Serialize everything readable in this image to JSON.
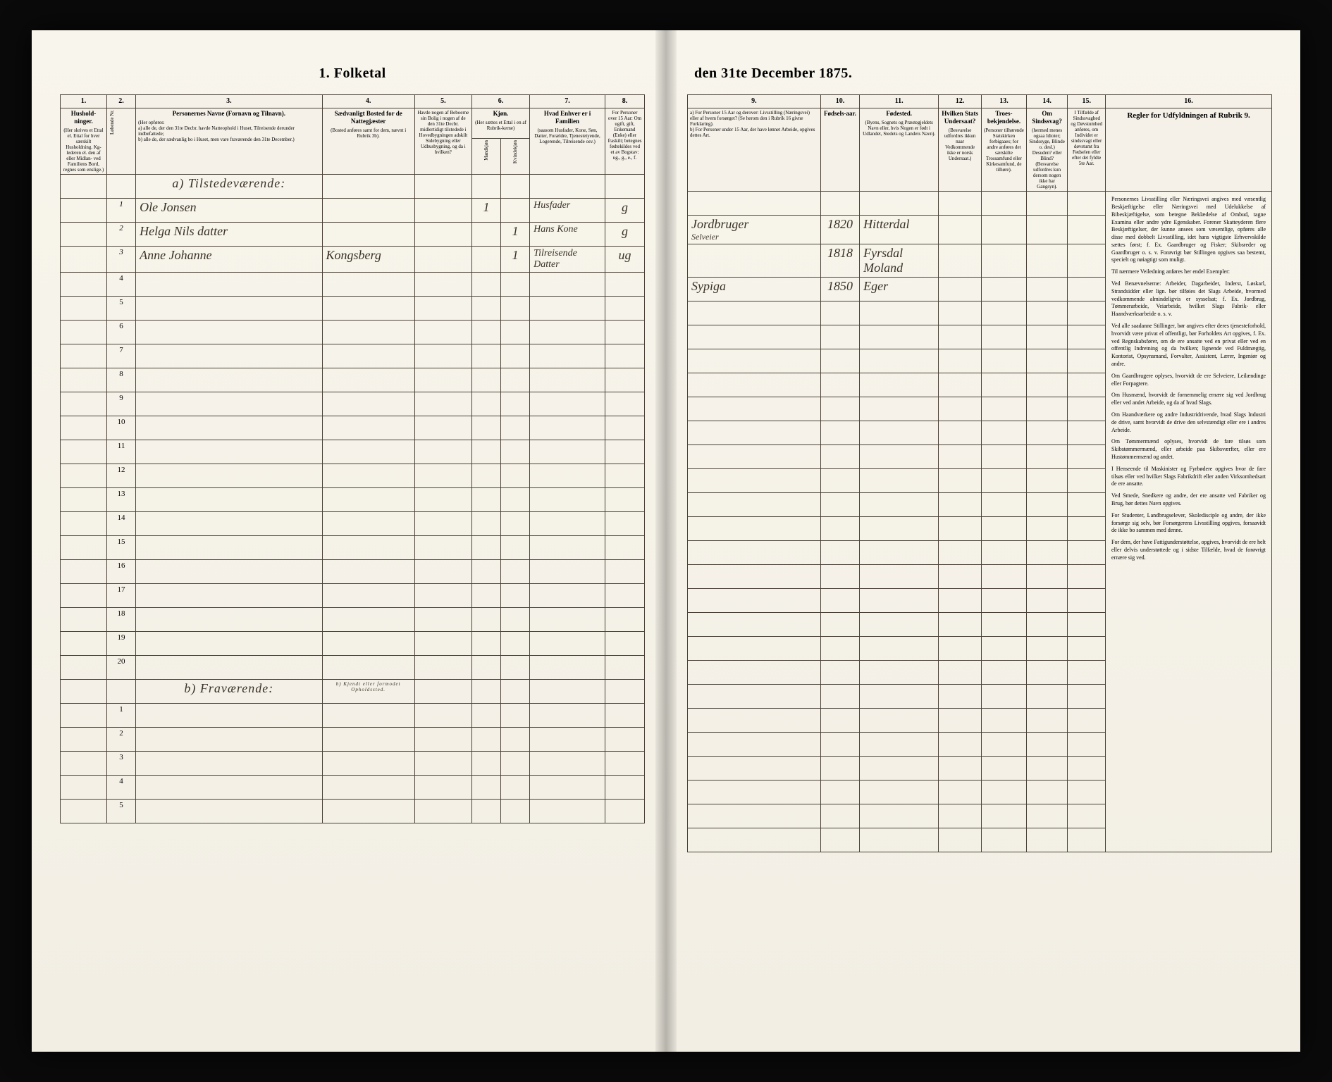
{
  "title_left": "1. Folketal",
  "title_right": "den 31te December 1875.",
  "column_numbers_left": [
    "1.",
    "2.",
    "3.",
    "4.",
    "5.",
    "6.",
    "7.",
    "8."
  ],
  "column_numbers_right": [
    "9.",
    "10.",
    "11.",
    "12.",
    "13.",
    "14.",
    "15.",
    "16."
  ],
  "headers_left": {
    "c1": {
      "main": "Hushold-ninger.",
      "sub": "(Her skrives et Ettal el. Ettal for hver særskilt Husholdning. Kg-lederen el. den af eller Midlan- ved Familiens Bord, regnes som enslige.)"
    },
    "c2": {
      "main": "",
      "sub": "Løbende Nr."
    },
    "c3": {
      "main": "Personernes Navne (Fornavn og Tilnavn).",
      "sub": "(Her opføres:\na) alle de, der den 31te Decbr. havde Natteophold i Huset, Tilreisende derunder indbefattede;\nb) alle de, der sædvanlig bo i Huset, men vare fraværende den 31te December.)"
    },
    "c4": {
      "main": "Sædvanligt Bosted for de Nattegjæster",
      "sub": "(Bosted anføres samt for dem, nævnt i Rubrik 3b)."
    },
    "c5": {
      "main": "Havde nogen af Beboerne sin Bolig i nogen af de den 31te Decbr. midlertidigt tilstedede i Hovedbygningen adskilt Sidebygning eller Udhusbygning, og da i hvilken?",
      "sub": ""
    },
    "c6": {
      "main": "Kjøn.",
      "sub": "(Her sættes et Ettal i en af Rubrik-kerne)"
    },
    "c6a": "Mandkjøn",
    "c6b": "Kvindekjøn",
    "c7": {
      "main": "Hvad Enhver er i Familien",
      "sub": "(saasom Husfader, Kone, Søn, Datter, Forældre, Tjenestetyende, Logerende, Tilreisende osv.)"
    },
    "c8": {
      "main": "For Personer over 15 Aar: Om ugift, gift, Enkemand (Enke) eller fraskilt; betegnes fødtekildes ved et av Bogstav: ug., g., e., f.",
      "sub": ""
    }
  },
  "headers_right": {
    "c9": {
      "main": "",
      "sub": "a) For Personer 15 Aar og derover: Livsstilling (Næringsvei) eller af hvem forsørget? (Se herom den i Rubrik 16 givne Forklaring).\nb) For Personer under 15 Aar, der have lønnet Arbeide, opgives dettes Art."
    },
    "c10": {
      "main": "Fødsels-aar.",
      "sub": ""
    },
    "c11": {
      "main": "Fødested.",
      "sub": "(Byens, Sognets og Præstegjeldets Navn eller, hvis Nogen er født i Udlandet, Stedets og Landets Navn)."
    },
    "c12": {
      "main": "Hvilken Stats Undersaat?",
      "sub": "(Besvarelse udfordres ikkun naar Vedkommende ikke er norsk Undersaat.)"
    },
    "c13": {
      "main": "Troes-bekjendelse.",
      "sub": "(Personer tilhørende Statskirken forbigaaes; for andre anføres det særskilte Trossamfund eller Kirkesamfund, de tilhøre)."
    },
    "c14": {
      "main": "Om Sindssvag?",
      "sub": "(hermed menes ogsaa Idioter; Sindssyge, Blinde o. desl.) Desuden? eller Blind? (Besvarelse udfordres kun dersom nogen ikke har Gangsyn)."
    },
    "c15": {
      "main": "I Tilfælde af Sindssvaghed og Døvstumhed anføres, om Individet er sindssvagt eller døvstumt fra Fødselen eller efter det fyldte 5te Aar.",
      "sub": ""
    },
    "c16": {
      "main": "Regler for Udfyldningen af Rubrik 9.",
      "sub": ""
    }
  },
  "section_a": "a) Tilstedeværende:",
  "section_b": "b) Fraværende:",
  "section_b_note": "b) Kjendt eller formodet Opholdssted.",
  "rows": [
    {
      "n": "1",
      "name": "Ole Jonsen",
      "c4": "",
      "c5": "",
      "m": "1",
      "k": "",
      "rel": "Husfader",
      "ms": "g",
      "occ": "Jordbruger",
      "sub": "Selveier",
      "yr": "1820",
      "bp": "Hitterdal"
    },
    {
      "n": "2",
      "name": "Helga Nils datter",
      "c4": "",
      "c5": "",
      "m": "",
      "k": "1",
      "rel": "Hans Kone",
      "ms": "g",
      "occ": "",
      "sub": "",
      "yr": "1818",
      "bp": "Fyrsdal Moland"
    },
    {
      "n": "3",
      "name": "Anne Johanne",
      "c4": "Kongsberg",
      "c5": "",
      "m": "",
      "k": "1",
      "rel": "Tilreisende Datter",
      "ms": "ug",
      "occ": "Sypiga",
      "sub": "",
      "yr": "1850",
      "bp": "Eger"
    }
  ],
  "empty_rows_a": [
    4,
    5,
    6,
    7,
    8,
    9,
    10,
    11,
    12,
    13,
    14,
    15,
    16,
    17,
    18,
    19,
    20
  ],
  "empty_rows_b": [
    1,
    2,
    3,
    4,
    5
  ],
  "instructions": [
    "Personernes Livsstilling eller Næringsvei angives med væsentlig Beskjæftigelse eller Næringsvei med Udelukkelse af Bibeskjæftigelse, som betegne Beklædelse af Ombud, tagne Examina eller andre ydre Egenskaber. Forener Skatteyderen flere Beskjæftigelser, der kunne ansees som væsentlige, opføres alle disse med dobbelt Livsstilling, idet hans vigtigste Erhvervskilde sættes først; f. Ex. Gaardbruger og Fisker; Skibsreder og Gaardbruger o. s. v. Forøvrigt bør Stillingen opgives saa bestemt, specielt og nøiagtigt som muligt.",
    "Til nærmere Veiledning anføres her endel Exempler:",
    "Ved Benævnelserne: Arbeider, Dagarbeider, Inderst, Løskarl, Strandsidder eller lign. bør tilføies det Slags Arbeide, hvormed vedkommende almindeligvis er sysselsat; f. Ex. Jordbrug, Tømmerarbeide, Veiarbeide, hvilket Slags Fabrik- eller Haandværksarbeide o. s. v.",
    "Ved alle saadanne Stillinger, bør angives efter deres tjenesteforhold, hvorvidt være privat el offentligt, bør Forholdets Art opgives, f. Ex. ved Regnskabsfører, om de ere ansatte ved en privat eller ved en offentlig Indretning og da hvilken; lignende ved Fuldmægtig, Kontorist, Opsynsmand, Forvalter, Assistent, Lærer, Ingeniør og andre.",
    "Om Gaardbrugere oplyses, hvorvidt de ere Selveiere, Leilændinge eller Forpagtere.",
    "Om Husmænd, hvorvidt de fornemmelig ernære sig ved Jordbrug eller ved andet Arbeide, og da af hvad Slags.",
    "Om Haandværkere og andre Industridrivende, hvad Slags Industri de drive, samt hvorvidt de drive den selvstændigt eller ere i andres Arbeide.",
    "Om Tømmermænd oplyses, hvorvidt de fare tilsøs som Skibstømmermænd, eller arbeide paa Skibsværfter, eller ere Hustømmermænd og andet.",
    "I Henseende til Maskinister og Fyrbødere opgives hvor de fare tilsøs eller ved hvilket Slags Fabrikdrift eller anden Virksomhedsart de ere ansatte.",
    "Ved Smede, Snedkere og andre, der ere ansatte ved Fabriker og Brug, bør dettes Navn opgives.",
    "For Studenter, Landbrugselever, Skoledisciple og andre, der ikke forsørge sig selv, bør Forsørgerens Livsstilling opgives, forsaavidt de ikke bo sammen med denne.",
    "For dem, der have Fattigunderstøttelse, opgives, hvorvidt de ere helt eller delvis understøttede og i sidste Tilfælde, hvad de forøvrigt ernære sig ved."
  ]
}
